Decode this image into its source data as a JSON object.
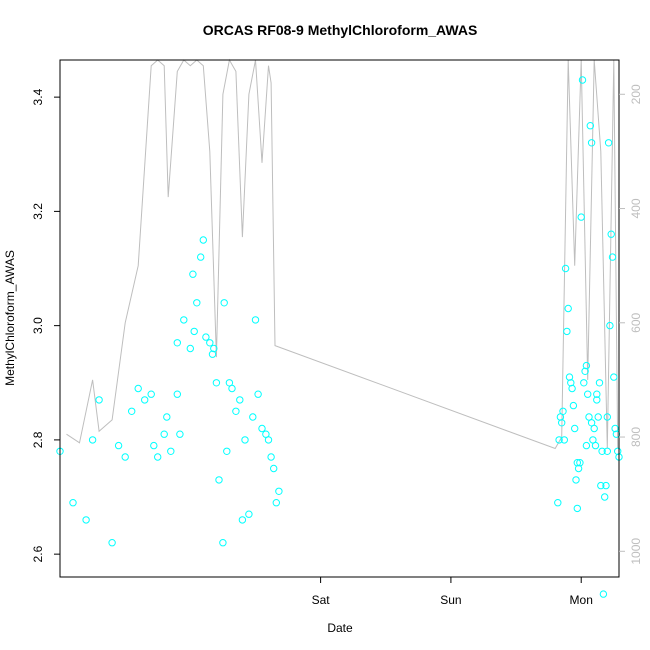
{
  "chart_data": {
    "type": "scatter",
    "title": "ORCAS RF08-9 MethylChloroform_AWAS",
    "xlabel": "Date",
    "ylabel": "MethylChloroform_AWAS",
    "x_ticks": [
      "Sat",
      "Sun",
      "Mon"
    ],
    "y_ticks": [
      "2.6",
      "2.8",
      "3.0",
      "3.2",
      "3.4"
    ],
    "y_right_ticks": [
      "200",
      "400",
      "600",
      "800",
      "1000"
    ],
    "ylim": [
      2.56,
      3.465
    ],
    "y_right_lim": [
      1045,
      140
    ],
    "grid": false,
    "legend": "none",
    "colors": {
      "points": "#00ffff",
      "line": "#bebebe",
      "axis": "#000000",
      "right_axis": "#bebebe"
    },
    "series": [
      {
        "type": "points",
        "group_sat": [
          [
            0.8,
            2.78
          ],
          [
            0.9,
            2.69
          ],
          [
            1.0,
            2.66
          ],
          [
            1.05,
            2.8
          ],
          [
            1.1,
            2.87
          ],
          [
            1.2,
            2.62
          ],
          [
            1.25,
            2.79
          ],
          [
            1.3,
            2.77
          ],
          [
            1.35,
            2.85
          ],
          [
            1.4,
            2.89
          ],
          [
            1.45,
            2.87
          ],
          [
            1.5,
            2.88
          ],
          [
            1.52,
            2.79
          ],
          [
            1.55,
            2.77
          ],
          [
            1.6,
            2.81
          ],
          [
            1.62,
            2.84
          ],
          [
            1.65,
            2.78
          ],
          [
            1.7,
            2.88
          ],
          [
            1.72,
            2.81
          ],
          [
            1.75,
            3.01
          ],
          [
            1.8,
            2.96
          ],
          [
            1.82,
            3.09
          ],
          [
            1.85,
            3.04
          ],
          [
            1.88,
            3.12
          ],
          [
            1.9,
            3.15
          ],
          [
            1.92,
            2.98
          ],
          [
            1.95,
            2.97
          ],
          [
            1.97,
            2.95
          ],
          [
            2.0,
            2.9
          ],
          [
            2.02,
            2.73
          ],
          [
            2.05,
            2.62
          ],
          [
            2.08,
            2.78
          ],
          [
            2.1,
            2.9
          ],
          [
            2.12,
            2.89
          ],
          [
            2.15,
            2.85
          ],
          [
            2.18,
            2.87
          ],
          [
            2.2,
            2.66
          ],
          [
            2.22,
            2.8
          ],
          [
            2.25,
            2.67
          ],
          [
            2.28,
            2.84
          ],
          [
            2.3,
            3.01
          ],
          [
            2.32,
            2.88
          ],
          [
            2.35,
            2.82
          ],
          [
            2.38,
            2.81
          ],
          [
            2.4,
            2.8
          ],
          [
            2.42,
            2.77
          ],
          [
            2.44,
            2.75
          ],
          [
            2.46,
            2.69
          ],
          [
            2.48,
            2.71
          ],
          [
            1.7,
            2.97
          ],
          [
            1.98,
            2.96
          ],
          [
            1.83,
            2.99
          ],
          [
            2.06,
            3.04
          ]
        ],
        "group_mon": [
          [
            4.62,
            2.69
          ],
          [
            4.63,
            2.8
          ],
          [
            4.64,
            2.84
          ],
          [
            4.65,
            2.83
          ],
          [
            4.66,
            2.85
          ],
          [
            4.68,
            3.1
          ],
          [
            4.69,
            2.99
          ],
          [
            4.7,
            3.03
          ],
          [
            4.71,
            2.91
          ],
          [
            4.72,
            2.9
          ],
          [
            4.73,
            2.89
          ],
          [
            4.75,
            2.82
          ],
          [
            4.76,
            2.73
          ],
          [
            4.77,
            2.68
          ],
          [
            4.78,
            2.75
          ],
          [
            4.79,
            2.76
          ],
          [
            4.8,
            3.19
          ],
          [
            4.81,
            3.43
          ],
          [
            4.82,
            2.9
          ],
          [
            4.83,
            2.92
          ],
          [
            4.84,
            2.93
          ],
          [
            4.85,
            2.88
          ],
          [
            4.86,
            2.84
          ],
          [
            4.87,
            3.35
          ],
          [
            4.88,
            3.32
          ],
          [
            4.89,
            2.8
          ],
          [
            4.9,
            2.82
          ],
          [
            4.91,
            2.79
          ],
          [
            4.92,
            2.88
          ],
          [
            4.93,
            2.84
          ],
          [
            4.94,
            2.9
          ],
          [
            4.95,
            2.72
          ],
          [
            4.96,
            2.78
          ],
          [
            4.97,
            2.53
          ],
          [
            4.98,
            2.7
          ],
          [
            4.99,
            2.72
          ],
          [
            5.0,
            2.84
          ],
          [
            5.01,
            3.32
          ],
          [
            5.02,
            3.0
          ],
          [
            5.03,
            3.16
          ],
          [
            5.04,
            3.12
          ],
          [
            5.05,
            2.91
          ],
          [
            5.06,
            2.82
          ],
          [
            5.07,
            2.81
          ],
          [
            5.08,
            2.78
          ],
          [
            5.09,
            2.77
          ],
          [
            4.74,
            2.86
          ],
          [
            4.67,
            2.8
          ],
          [
            4.88,
            2.83
          ],
          [
            4.92,
            2.87
          ],
          [
            5.0,
            2.78
          ],
          [
            4.84,
            2.79
          ],
          [
            4.77,
            2.76
          ]
        ]
      },
      {
        "type": "line",
        "name_axis": "right",
        "points": [
          [
            0.85,
            795
          ],
          [
            0.95,
            810
          ],
          [
            1.05,
            700
          ],
          [
            1.1,
            790
          ],
          [
            1.2,
            770
          ],
          [
            1.3,
            600
          ],
          [
            1.4,
            500
          ],
          [
            1.5,
            150
          ],
          [
            1.55,
            140
          ],
          [
            1.6,
            150
          ],
          [
            1.63,
            380
          ],
          [
            1.7,
            160
          ],
          [
            1.75,
            140
          ],
          [
            1.8,
            150
          ],
          [
            1.85,
            140
          ],
          [
            1.9,
            150
          ],
          [
            1.95,
            300
          ],
          [
            2.0,
            660
          ],
          [
            2.05,
            200
          ],
          [
            2.1,
            140
          ],
          [
            2.15,
            160
          ],
          [
            2.2,
            450
          ],
          [
            2.25,
            200
          ],
          [
            2.3,
            140
          ],
          [
            2.35,
            320
          ],
          [
            2.4,
            150
          ],
          [
            2.42,
            180
          ],
          [
            2.45,
            640
          ],
          [
            4.6,
            820
          ],
          [
            4.65,
            800
          ],
          [
            4.7,
            140
          ],
          [
            4.75,
            500
          ],
          [
            4.8,
            140
          ],
          [
            4.85,
            700
          ],
          [
            4.9,
            140
          ],
          [
            4.95,
            300
          ],
          [
            5.0,
            820
          ],
          [
            5.05,
            140
          ],
          [
            5.08,
            820
          ]
        ]
      }
    ],
    "x_tick_values": [
      2.8,
      3.8,
      4.8
    ],
    "xlim": [
      0.8,
      5.09
    ]
  }
}
